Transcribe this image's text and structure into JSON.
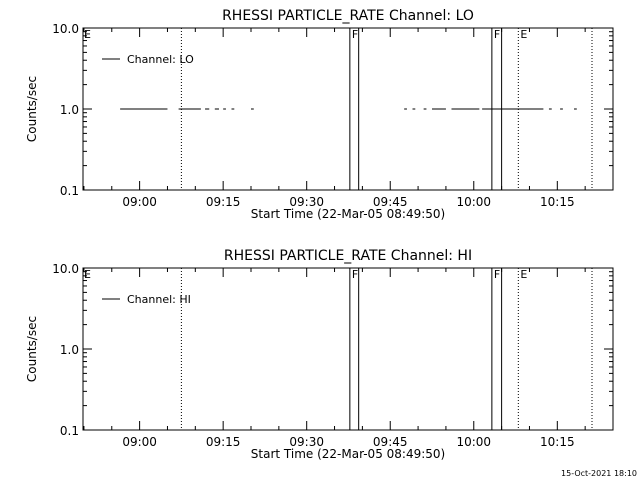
{
  "footer": {
    "timestamp": "15-Oct-2021 18:10"
  },
  "chart_data": [
    {
      "type": "line",
      "title": "RHESSI PARTICLE_RATE Channel: LO",
      "xlabel": "Start Time (22-Mar-05 08:49:50)",
      "ylabel": "Counts/sec",
      "yscale": "log",
      "ylim": [
        0.1,
        10.0
      ],
      "xlim": [
        "08:49:50",
        "10:25:00"
      ],
      "x_ticks": [
        "09:00",
        "09:15",
        "09:30",
        "09:45",
        "10:00",
        "10:15"
      ],
      "y_ticks": [
        "0.1",
        "1.0",
        "10.0"
      ],
      "legend": {
        "entries": [
          "Channel: LO"
        ],
        "position": "top-left"
      },
      "series": [
        {
          "name": "Channel: LO",
          "segments": [
            {
              "x": [
                "08:56:30",
                "09:05:00"
              ],
              "y": 1.0
            },
            {
              "x": [
                "09:07:00",
                "09:11:00"
              ],
              "y": 1.0
            },
            {
              "x": [
                "09:11:45",
                "09:12:30"
              ],
              "y": 1.0
            },
            {
              "x": [
                "09:13:30",
                "09:14:15"
              ],
              "y": 1.0
            },
            {
              "x": [
                "09:15:00",
                "09:15:30"
              ],
              "y": 1.0
            },
            {
              "x": [
                "09:16:30",
                "09:17:00"
              ],
              "y": 1.0
            },
            {
              "x": [
                "09:20:00",
                "09:20:30"
              ],
              "y": 1.0
            },
            {
              "x": [
                "09:47:30",
                "09:48:00"
              ],
              "y": 1.0
            },
            {
              "x": [
                "09:49:00",
                "09:49:30"
              ],
              "y": 1.0
            },
            {
              "x": [
                "09:51:00",
                "09:51:30"
              ],
              "y": 1.0
            },
            {
              "x": [
                "09:52:30",
                "09:55:00"
              ],
              "y": 1.0
            },
            {
              "x": [
                "09:56:00",
                "10:01:00"
              ],
              "y": 1.0
            },
            {
              "x": [
                "10:01:30",
                "10:12:30"
              ],
              "y": 1.0
            },
            {
              "x": [
                "10:13:30",
                "10:14:00"
              ],
              "y": 1.0
            },
            {
              "x": [
                "10:15:30",
                "10:16:00"
              ],
              "y": 1.0
            },
            {
              "x": [
                "10:18:00",
                "10:18:30"
              ],
              "y": 1.0
            }
          ]
        }
      ],
      "markers": [
        {
          "label": "E",
          "time": "08:49:50",
          "style": "dotted-edge"
        },
        {
          "time": "09:07:30",
          "style": "dotted"
        },
        {
          "label": "F",
          "time": "09:37:45",
          "style": "solid"
        },
        {
          "time": "09:39:20",
          "style": "solid"
        },
        {
          "label": "F",
          "time": "10:03:15",
          "style": "solid"
        },
        {
          "time": "10:05:00",
          "style": "solid"
        },
        {
          "label": "E",
          "time": "10:08:00",
          "style": "dotted"
        },
        {
          "time": "10:25:15",
          "style": "dotted"
        }
      ]
    },
    {
      "type": "line",
      "title": "RHESSI PARTICLE_RATE Channel: HI",
      "xlabel": "Start Time (22-Mar-05 08:49:50)",
      "ylabel": "Counts/sec",
      "yscale": "log",
      "ylim": [
        0.1,
        10.0
      ],
      "xlim": [
        "08:49:50",
        "10:25:00"
      ],
      "x_ticks": [
        "09:00",
        "09:15",
        "09:30",
        "09:45",
        "10:00",
        "10:15"
      ],
      "y_ticks": [
        "0.1",
        "1.0",
        "10.0"
      ],
      "legend": {
        "entries": [
          "Channel: HI"
        ],
        "position": "top-left"
      },
      "series": [
        {
          "name": "Channel: HI",
          "segments": []
        }
      ],
      "markers": [
        {
          "label": "E",
          "time": "08:49:50",
          "style": "dotted-edge"
        },
        {
          "time": "09:07:30",
          "style": "dotted"
        },
        {
          "label": "F",
          "time": "09:37:45",
          "style": "solid"
        },
        {
          "time": "09:39:20",
          "style": "solid"
        },
        {
          "label": "F",
          "time": "10:03:15",
          "style": "solid"
        },
        {
          "time": "10:05:00",
          "style": "solid"
        },
        {
          "label": "E",
          "time": "10:08:00",
          "style": "dotted"
        },
        {
          "time": "10:25:15",
          "style": "dotted"
        }
      ]
    }
  ]
}
